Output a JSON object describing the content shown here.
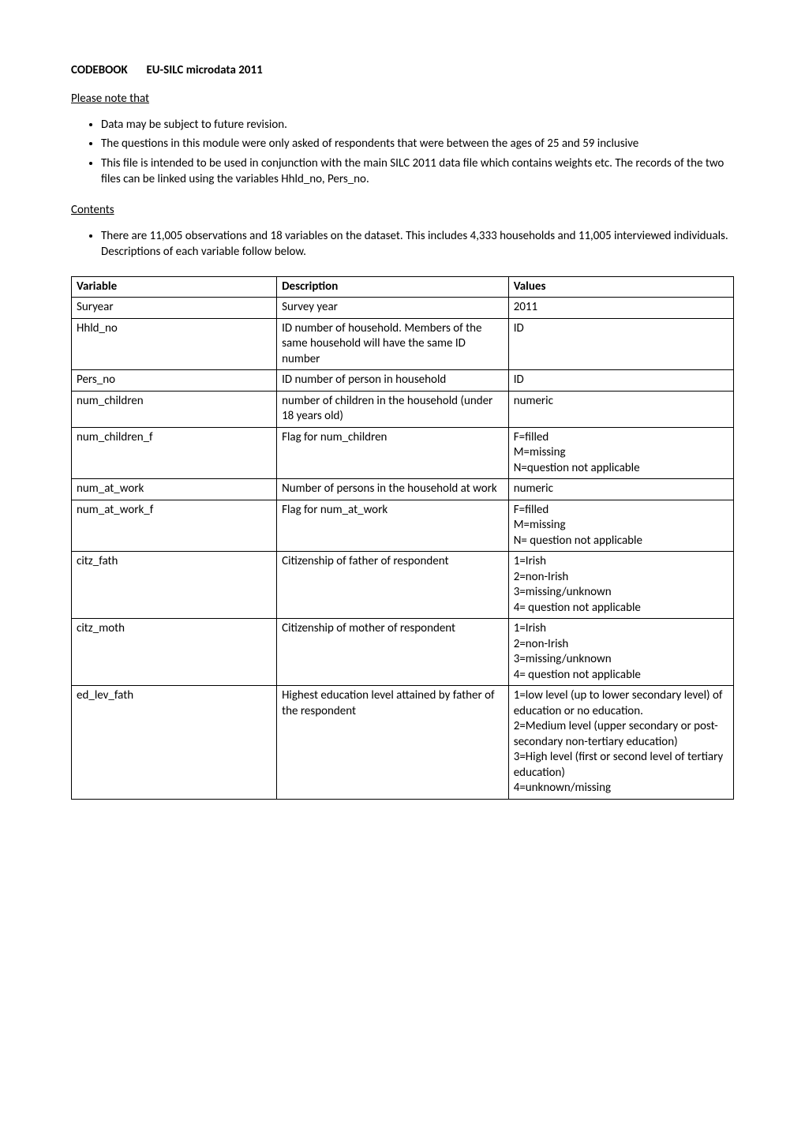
{
  "header": {
    "codebook_label": "CODEBOOK",
    "codebook_title": "EU-SILC microdata 2011"
  },
  "notes": {
    "heading": "Please note that",
    "bullets": [
      "Data may be subject to future revision.",
      "The questions in this module were only asked of respondents that were between the ages of 25 and 59 inclusive",
      "This file is intended to be used in conjunction with the main SILC 2011 data file which contains weights etc.  The records of the two files can be linked using the variables Hhld_no,  Pers_no."
    ]
  },
  "contents": {
    "heading": "Contents",
    "bullets": [
      "There are 11,005 observations and 18 variables on the dataset. This includes 4,333 households and 11,005 interviewed individuals.  Descriptions of each variable follow below."
    ]
  },
  "table": {
    "type": "table",
    "border_color": "#000000",
    "background_color": "#ffffff",
    "header_font_weight": "bold",
    "cell_fontsize": 15,
    "columns": [
      "Variable",
      "Description",
      "Values"
    ],
    "rows": [
      {
        "variable": "Suryear",
        "description": "Survey year",
        "values": "2011"
      },
      {
        "variable": "Hhld_no",
        "description": "ID number of household. Members of the same household will have the same ID number",
        "values": "ID"
      },
      {
        "variable": "Pers_no",
        "description": "ID number of person in household",
        "values": "ID"
      },
      {
        "variable": "num_children",
        "description": "number of children in the household (under 18 years old)",
        "values": "numeric"
      },
      {
        "variable": "num_children_f",
        "description": "Flag for num_children",
        "values": "F=filled\nM=missing\nN=question not applicable"
      },
      {
        "variable": "num_at_work",
        "description": "Number of persons in the household at work",
        "values": "numeric"
      },
      {
        "variable": "num_at_work_f",
        "description": "Flag for num_at_work",
        "values": "F=filled\nM=missing\nN= question not applicable"
      },
      {
        "variable": "citz_fath",
        "description": "Citizenship of father of respondent",
        "values": "1=Irish\n2=non-Irish\n3=missing/unknown\n4= question not applicable"
      },
      {
        "variable": "citz_moth",
        "description": "Citizenship of mother of respondent",
        "values": "1=Irish\n2=non-Irish\n3=missing/unknown\n4= question not applicable"
      },
      {
        "variable": "ed_lev_fath",
        "description": "Highest education level attained by father of the respondent",
        "values": "1=low level (up to lower secondary level) of education or no education.\n2=Medium level (upper secondary or post-secondary non-tertiary education)\n3=High level  (first or second level of tertiary education)\n4=unknown/missing"
      }
    ]
  }
}
